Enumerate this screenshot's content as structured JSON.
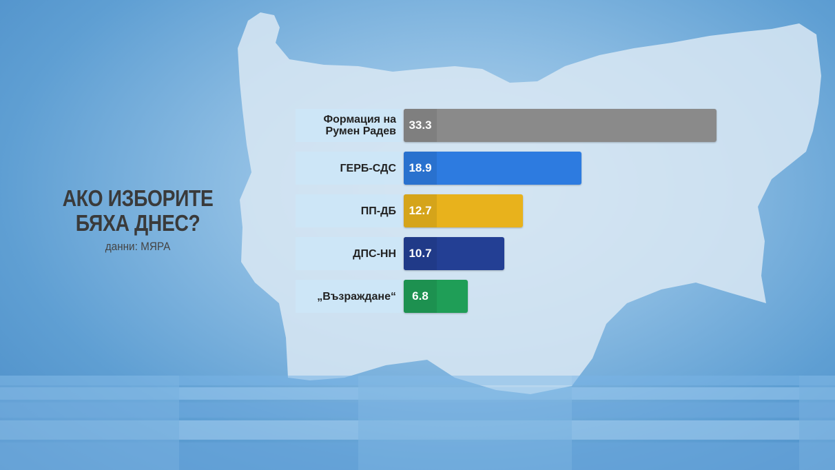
{
  "headline": {
    "title": "АКО ИЗБОРИТЕ\nБЯХА ДНЕС?",
    "source": "данни: МЯРА"
  },
  "chart_data": {
    "type": "bar",
    "orientation": "horizontal",
    "categories": [
      "Формация на\nРумен Радев",
      "ГЕРБ-СДС",
      "ПП-ДБ",
      "ДПС-НН",
      "„Възраждане“"
    ],
    "values": [
      33.3,
      18.9,
      12.7,
      10.7,
      6.8
    ],
    "value_labels": [
      "33.3",
      "18.9",
      "12.7",
      "10.7",
      "6.8"
    ],
    "colors": [
      "#8a8a8a",
      "#2d7be0",
      "#e8b21c",
      "#233f94",
      "#1f9e57"
    ],
    "title": "",
    "xlim": [
      0,
      33.3
    ],
    "grid": false
  }
}
